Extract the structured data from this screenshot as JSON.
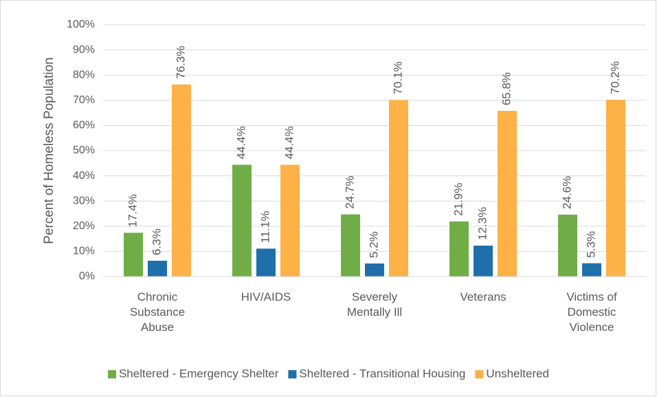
{
  "chart_data": {
    "type": "bar",
    "y_label": "Percent of Homeless Population",
    "categories": [
      "Chronic\nSubstance\nAbuse",
      "HIV/AIDS",
      "Severely\nMentally Ill",
      "Veterans",
      "Victims of\nDomestic\nViolence"
    ],
    "series": [
      {
        "name": "Sheltered - Emergency Shelter",
        "color": "#70ad47",
        "values": [
          17.4,
          44.4,
          24.7,
          21.9,
          24.6
        ],
        "value_labels": [
          "17.4%",
          "44.4%",
          "24.7%",
          "21.9%",
          "24.6%"
        ]
      },
      {
        "name": "Sheltered - Transitional Housing",
        "color": "#1f6fab",
        "values": [
          6.3,
          11.1,
          5.2,
          12.3,
          5.3
        ],
        "value_labels": [
          "6.3%",
          "11.1%",
          "5.2%",
          "12.3%",
          "5.3%"
        ]
      },
      {
        "name": "Unsheltered",
        "color": "#fdb147",
        "values": [
          76.3,
          44.4,
          70.1,
          65.8,
          70.2
        ],
        "value_labels": [
          "76.3%",
          "44.4%",
          "70.1%",
          "65.8%",
          "70.2%"
        ]
      }
    ],
    "ylim": [
      0,
      100
    ],
    "yticks": [
      {
        "value": 0,
        "label": "0%"
      },
      {
        "value": 10,
        "label": "10%"
      },
      {
        "value": 20,
        "label": "20%"
      },
      {
        "value": 30,
        "label": "30%"
      },
      {
        "value": 40,
        "label": "40%"
      },
      {
        "value": 50,
        "label": "50%"
      },
      {
        "value": 60,
        "label": "60%"
      },
      {
        "value": 70,
        "label": "70%"
      },
      {
        "value": 80,
        "label": "80%"
      },
      {
        "value": 90,
        "label": "90%"
      },
      {
        "value": 100,
        "label": "100%"
      }
    ],
    "grid": true,
    "legend": "bottom"
  }
}
